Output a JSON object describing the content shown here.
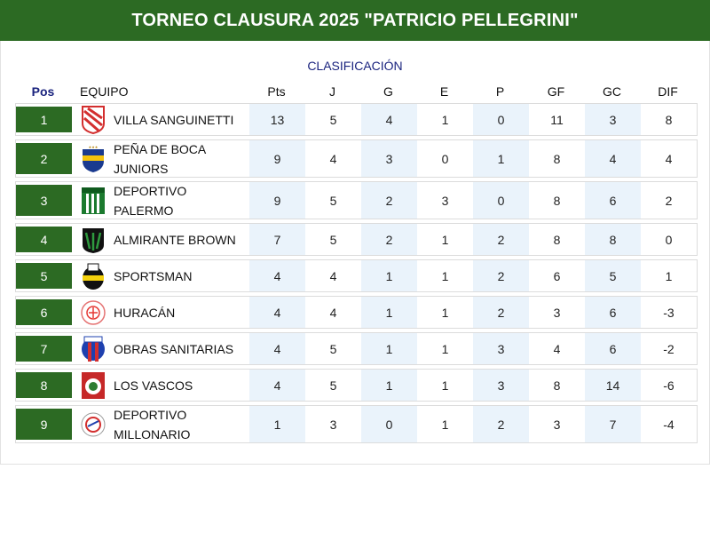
{
  "header": {
    "title": "TORNEO CLAUSURA 2025 \"PATRICIO PELLEGRINI\""
  },
  "subtitle": "CLASIFICACIÓN",
  "columns": {
    "pos": "Pos",
    "team": "EQUIPO",
    "pts": "Pts",
    "j": "J",
    "g": "G",
    "e": "E",
    "p": "P",
    "gf": "GF",
    "gc": "GC",
    "dif": "DIF"
  },
  "colors": {
    "accent": "#2c6a23",
    "shade": "#eaf3fb",
    "subtitle": "#1a237e"
  },
  "rows": [
    {
      "pos": "1",
      "team": "VILLA SANGUINETTI",
      "pts": "13",
      "j": "5",
      "g": "4",
      "e": "1",
      "p": "0",
      "gf": "11",
      "gc": "3",
      "dif": "8",
      "badge": "villa-sanguinetti-badge-icon"
    },
    {
      "pos": "2",
      "team": "PEÑA DE BOCA JUNIORS",
      "pts": "9",
      "j": "4",
      "g": "3",
      "e": "0",
      "p": "1",
      "gf": "8",
      "gc": "4",
      "dif": "4",
      "badge": "pena-de-boca-badge-icon"
    },
    {
      "pos": "3",
      "team": "DEPORTIVO PALERMO",
      "pts": "9",
      "j": "5",
      "g": "2",
      "e": "3",
      "p": "0",
      "gf": "8",
      "gc": "6",
      "dif": "2",
      "badge": "deportivo-palermo-badge-icon"
    },
    {
      "pos": "4",
      "team": "ALMIRANTE BROWN",
      "pts": "7",
      "j": "5",
      "g": "2",
      "e": "1",
      "p": "2",
      "gf": "8",
      "gc": "8",
      "dif": "0",
      "badge": "almirante-brown-badge-icon"
    },
    {
      "pos": "5",
      "team": "SPORTSMAN",
      "pts": "4",
      "j": "4",
      "g": "1",
      "e": "1",
      "p": "2",
      "gf": "6",
      "gc": "5",
      "dif": "1",
      "badge": "sportsman-badge-icon"
    },
    {
      "pos": "6",
      "team": "HURACÁN",
      "pts": "4",
      "j": "4",
      "g": "1",
      "e": "1",
      "p": "2",
      "gf": "3",
      "gc": "6",
      "dif": "-3",
      "badge": "huracan-badge-icon"
    },
    {
      "pos": "7",
      "team": "OBRAS SANITARIAS",
      "pts": "4",
      "j": "5",
      "g": "1",
      "e": "1",
      "p": "3",
      "gf": "4",
      "gc": "6",
      "dif": "-2",
      "badge": "obras-sanitarias-badge-icon"
    },
    {
      "pos": "8",
      "team": "LOS VASCOS",
      "pts": "4",
      "j": "5",
      "g": "1",
      "e": "1",
      "p": "3",
      "gf": "8",
      "gc": "14",
      "dif": "-6",
      "badge": "los-vascos-badge-icon"
    },
    {
      "pos": "9",
      "team": "DEPORTIVO MILLONARIO",
      "pts": "1",
      "j": "3",
      "g": "0",
      "e": "1",
      "p": "2",
      "gf": "3",
      "gc": "7",
      "dif": "-4",
      "badge": "deportivo-millonario-badge-icon"
    }
  ]
}
